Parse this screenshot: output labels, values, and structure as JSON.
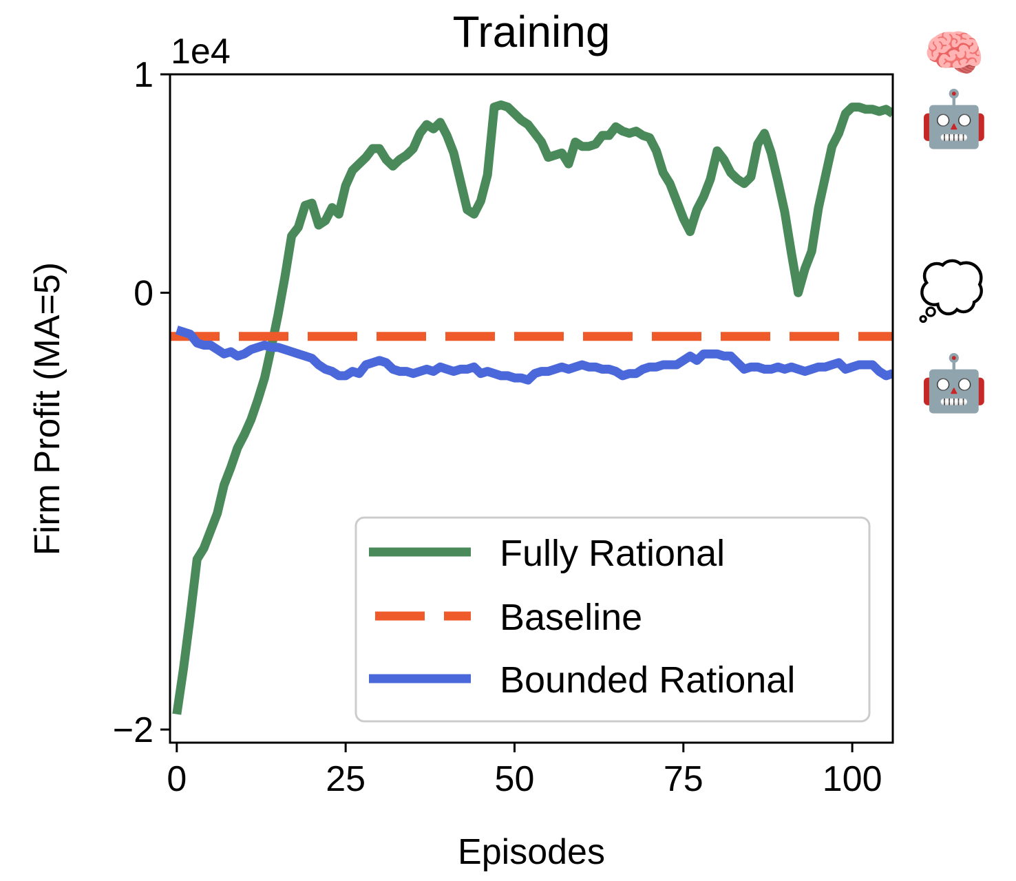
{
  "chart_data": {
    "type": "line",
    "title": "Training",
    "xlabel": "Episodes",
    "ylabel": "Firm Profit (MA=5)",
    "y_offset_text": "1e4",
    "xlim": [
      -1,
      106
    ],
    "ylim": [
      -2.06,
      1.0
    ],
    "xticks": [
      0,
      25,
      50,
      75,
      100
    ],
    "xtick_labels": [
      "0",
      "25",
      "50",
      "75",
      "100"
    ],
    "yticks": [
      -2,
      0,
      1
    ],
    "ytick_labels": [
      "−2",
      "0",
      "1"
    ],
    "grid": false,
    "legend_position": "lower-right",
    "series": [
      {
        "name": "Fully Rational",
        "color": "#4a8a5a",
        "style": "solid",
        "x": [
          0,
          1,
          2,
          3,
          4,
          5,
          6,
          7,
          8,
          9,
          10,
          11,
          12,
          13,
          14,
          15,
          16,
          17,
          18,
          19,
          20,
          21,
          22,
          23,
          24,
          25,
          26,
          27,
          28,
          29,
          30,
          31,
          32,
          33,
          34,
          35,
          36,
          37,
          38,
          39,
          40,
          41,
          42,
          43,
          44,
          45,
          46,
          47,
          48,
          49,
          50,
          51,
          52,
          53,
          54,
          55,
          56,
          57,
          58,
          59,
          60,
          61,
          62,
          63,
          64,
          65,
          66,
          67,
          68,
          69,
          70,
          71,
          72,
          73,
          74,
          75,
          76,
          77,
          78,
          79,
          80,
          81,
          82,
          83,
          84,
          85,
          86,
          87,
          88,
          89,
          90,
          91,
          92,
          93,
          94,
          95,
          96,
          97,
          98,
          99,
          100,
          101,
          102,
          103,
          104,
          105,
          106
        ],
        "y": [
          -1.93,
          -1.72,
          -1.48,
          -1.22,
          -1.17,
          -1.09,
          -1.01,
          -0.88,
          -0.8,
          -0.71,
          -0.65,
          -0.58,
          -0.49,
          -0.39,
          -0.25,
          -0.1,
          0.07,
          0.26,
          0.3,
          0.4,
          0.41,
          0.31,
          0.33,
          0.39,
          0.36,
          0.49,
          0.56,
          0.59,
          0.62,
          0.66,
          0.66,
          0.61,
          0.58,
          0.61,
          0.63,
          0.66,
          0.73,
          0.77,
          0.75,
          0.78,
          0.72,
          0.64,
          0.51,
          0.38,
          0.36,
          0.42,
          0.54,
          0.85,
          0.86,
          0.85,
          0.82,
          0.79,
          0.77,
          0.73,
          0.69,
          0.62,
          0.63,
          0.64,
          0.59,
          0.69,
          0.67,
          0.67,
          0.68,
          0.72,
          0.72,
          0.76,
          0.74,
          0.73,
          0.74,
          0.72,
          0.71,
          0.65,
          0.55,
          0.5,
          0.42,
          0.34,
          0.28,
          0.38,
          0.44,
          0.52,
          0.65,
          0.61,
          0.55,
          0.52,
          0.5,
          0.53,
          0.68,
          0.73,
          0.64,
          0.51,
          0.37,
          0.18,
          0.0,
          0.11,
          0.19,
          0.39,
          0.53,
          0.67,
          0.73,
          0.82,
          0.85,
          0.85,
          0.84,
          0.84,
          0.83,
          0.84,
          0.82
        ]
      },
      {
        "name": "Baseline",
        "color": "#ee5a2a",
        "style": "dashed",
        "x": [
          -1,
          106
        ],
        "y": [
          -0.2,
          -0.2
        ]
      },
      {
        "name": "Bounded Rational",
        "color": "#4b68db",
        "style": "solid",
        "x": [
          0,
          1,
          2,
          3,
          4,
          5,
          6,
          7,
          8,
          9,
          10,
          11,
          12,
          13,
          14,
          15,
          16,
          17,
          18,
          19,
          20,
          21,
          22,
          23,
          24,
          25,
          26,
          27,
          28,
          29,
          30,
          31,
          32,
          33,
          34,
          35,
          36,
          37,
          38,
          39,
          40,
          41,
          42,
          43,
          44,
          45,
          46,
          47,
          48,
          49,
          50,
          51,
          52,
          53,
          54,
          55,
          56,
          57,
          58,
          59,
          60,
          61,
          62,
          63,
          64,
          65,
          66,
          67,
          68,
          69,
          70,
          71,
          72,
          73,
          74,
          75,
          76,
          77,
          78,
          79,
          80,
          81,
          82,
          83,
          84,
          85,
          86,
          87,
          88,
          89,
          90,
          91,
          92,
          93,
          94,
          95,
          96,
          97,
          98,
          99,
          100,
          101,
          102,
          103,
          104,
          105,
          106
        ],
        "y": [
          -0.17,
          -0.18,
          -0.19,
          -0.23,
          -0.24,
          -0.24,
          -0.26,
          -0.28,
          -0.27,
          -0.29,
          -0.28,
          -0.26,
          -0.25,
          -0.24,
          -0.25,
          -0.25,
          -0.26,
          -0.27,
          -0.28,
          -0.29,
          -0.3,
          -0.33,
          -0.35,
          -0.36,
          -0.38,
          -0.38,
          -0.36,
          -0.37,
          -0.33,
          -0.32,
          -0.31,
          -0.32,
          -0.35,
          -0.36,
          -0.36,
          -0.37,
          -0.36,
          -0.35,
          -0.36,
          -0.34,
          -0.35,
          -0.36,
          -0.35,
          -0.35,
          -0.34,
          -0.37,
          -0.36,
          -0.37,
          -0.38,
          -0.38,
          -0.39,
          -0.39,
          -0.4,
          -0.37,
          -0.36,
          -0.36,
          -0.35,
          -0.34,
          -0.35,
          -0.34,
          -0.33,
          -0.34,
          -0.34,
          -0.35,
          -0.35,
          -0.36,
          -0.38,
          -0.37,
          -0.37,
          -0.35,
          -0.34,
          -0.34,
          -0.33,
          -0.33,
          -0.33,
          -0.31,
          -0.29,
          -0.31,
          -0.28,
          -0.28,
          -0.28,
          -0.29,
          -0.29,
          -0.32,
          -0.35,
          -0.34,
          -0.34,
          -0.35,
          -0.35,
          -0.34,
          -0.35,
          -0.34,
          -0.35,
          -0.36,
          -0.35,
          -0.34,
          -0.34,
          -0.33,
          -0.32,
          -0.35,
          -0.34,
          -0.33,
          -0.33,
          -0.33,
          -0.36,
          -0.38,
          -0.37
        ]
      }
    ],
    "emoji_markers": [
      {
        "name": "brain",
        "glyph": "🧠"
      },
      {
        "name": "robot-full",
        "glyph": "🤖"
      },
      {
        "name": "thought-island",
        "glyph": "💭"
      },
      {
        "name": "robot-bounded",
        "glyph": "🤖"
      }
    ]
  }
}
